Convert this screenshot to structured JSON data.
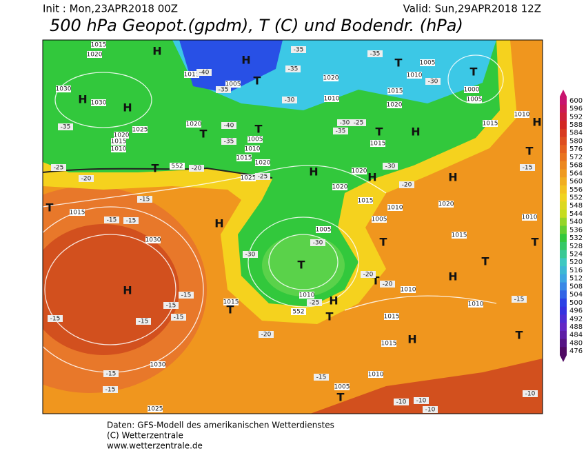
{
  "header": {
    "init": "Init : Mon,23APR2018 00Z",
    "valid": "Valid: Sun,29APR2018 12Z",
    "title": "500 hPa Geopot.(gpdm), T (C) und Bodendr. (hPa)"
  },
  "map": {
    "highs_lows": [
      "H",
      "H",
      "T",
      "T",
      "T",
      "H",
      "H",
      "T",
      "T",
      "H",
      "T",
      "H",
      "T",
      "T",
      "H",
      "H",
      "H",
      "T",
      "H",
      "T",
      "T",
      "T",
      "T",
      "H",
      "H",
      "T",
      "T",
      "H",
      "T",
      "H",
      "T",
      "T"
    ],
    "isobar_labels": [
      "1020",
      "1015",
      "1030",
      "1030",
      "1025",
      "1020",
      "1015",
      "1010",
      "1005",
      "1015",
      "1020",
      "1005",
      "1010",
      "1015",
      "1020",
      "1025",
      "1020",
      "1010",
      "1015",
      "1020",
      "1020",
      "1015",
      "1010",
      "1005",
      "1020",
      "1015",
      "1010",
      "1015",
      "1005",
      "1010",
      "1015",
      "1020",
      "1000",
      "1005",
      "1015",
      "1030",
      "1005",
      "1010",
      "1010",
      "1010",
      "1015",
      "1015",
      "1015",
      "1030",
      "1025",
      "1010",
      "1005",
      "1010"
    ],
    "temperature_labels": [
      "-35",
      "-25",
      "-20",
      "-15",
      "-15",
      "-15",
      "-20",
      "-25",
      "-30",
      "-30",
      "-25",
      "-20",
      "-20",
      "-20",
      "-15",
      "-15",
      "-15",
      "-15",
      "-15",
      "-15",
      "-15",
      "-15",
      "-10",
      "-10",
      "-10",
      "-10",
      "-15",
      "-15",
      "-20",
      "-30",
      "-30",
      "-25",
      "-35",
      "-35",
      "-30",
      "-35",
      "-30",
      "-40",
      "-35",
      "-40",
      "-35",
      "-35"
    ],
    "contour_labels": [
      "552",
      "552"
    ]
  },
  "colorbar": {
    "labels": [
      600,
      596,
      592,
      588,
      584,
      580,
      576,
      572,
      568,
      564,
      560,
      556,
      552,
      548,
      544,
      540,
      536,
      532,
      528,
      524,
      520,
      516,
      512,
      508,
      504,
      500,
      496,
      492,
      488,
      484,
      480,
      476
    ]
  },
  "footer": {
    "lines": [
      "Daten: GFS-Modell des amerikanischen Wetterdienstes",
      "(C) Wetterzentrale",
      "www.wetterzentrale.de"
    ]
  }
}
